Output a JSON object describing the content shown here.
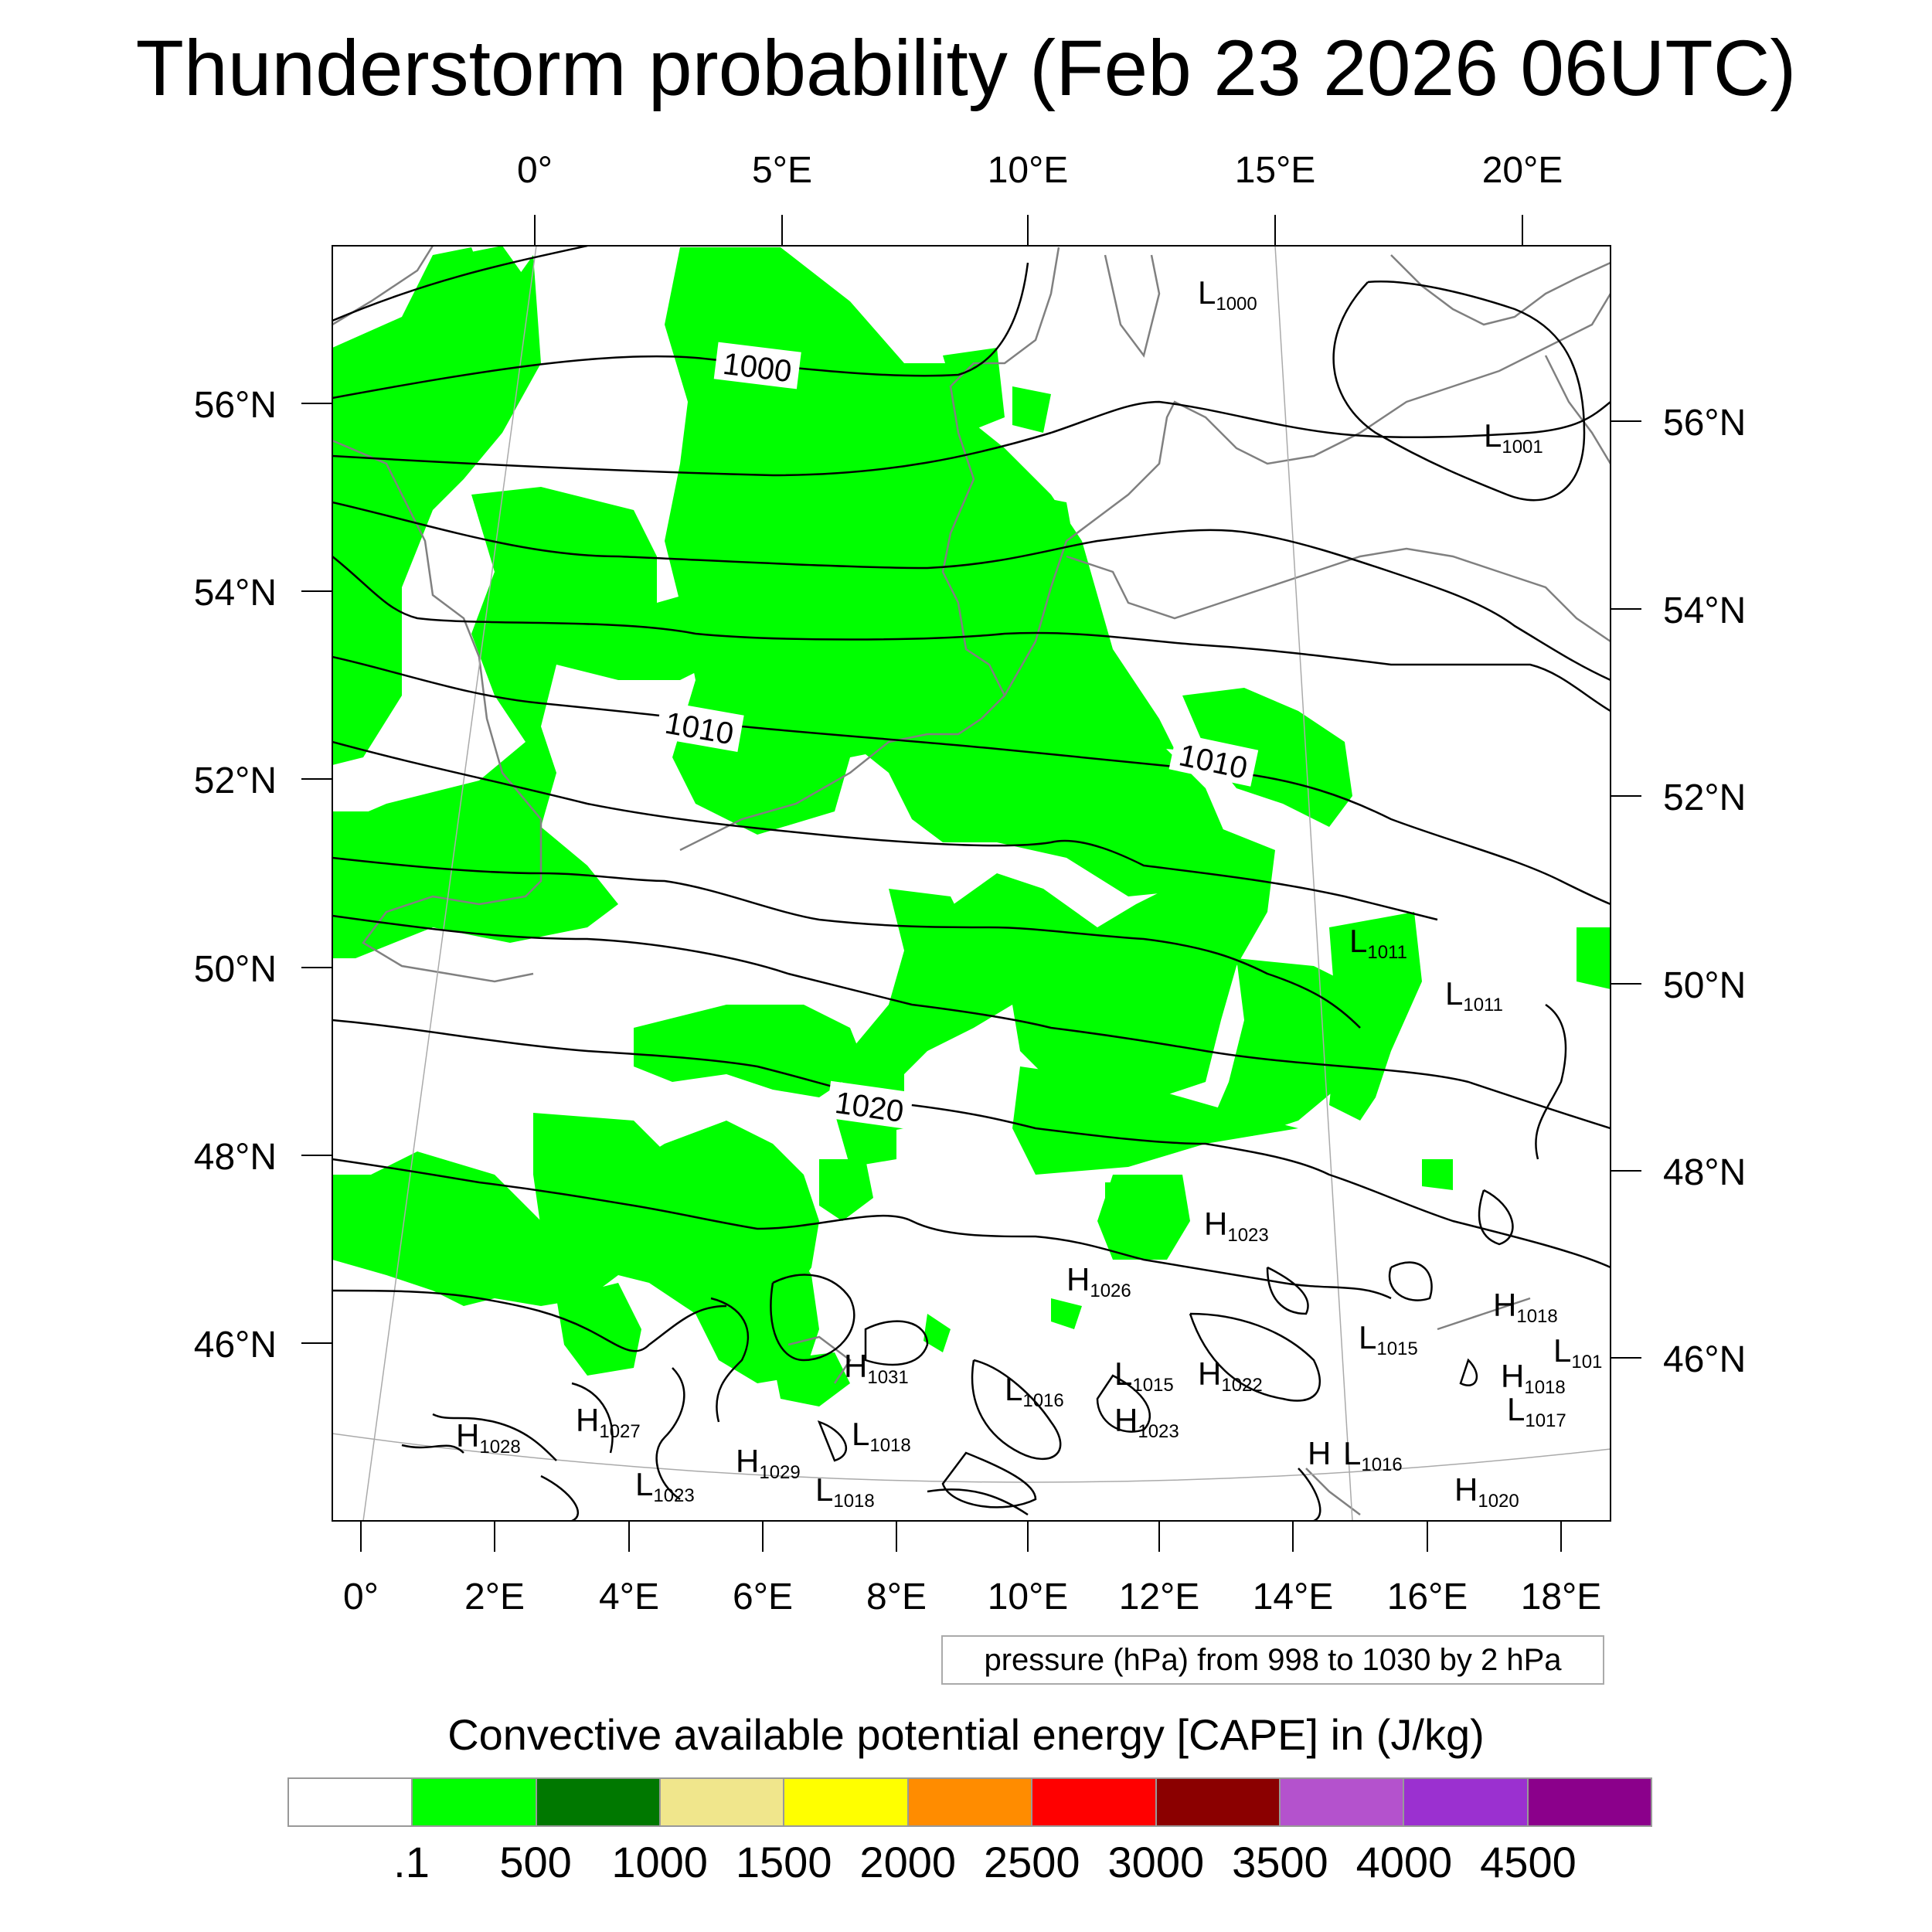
{
  "title": "Thunderstorm probability (Feb 23 2026 06UTC)",
  "top_axis_labels": [
    "0°",
    "5°E",
    "10°E",
    "15°E",
    "20°E"
  ],
  "bottom_axis_labels": [
    "0°",
    "2°E",
    "4°E",
    "6°E",
    "8°E",
    "10°E",
    "12°E",
    "14°E",
    "16°E",
    "18°E"
  ],
  "left_axis_labels": [
    "56°N",
    "54°N",
    "52°N",
    "50°N",
    "48°N",
    "46°N"
  ],
  "right_axis_labels": [
    "56°N",
    "54°N",
    "52°N",
    "50°N",
    "48°N",
    "46°N"
  ],
  "contour_labels": [
    "1000",
    "1010",
    "1010",
    "1020"
  ],
  "pressure_centers": [
    {
      "letter": "L",
      "value": "1000"
    },
    {
      "letter": "L",
      "value": "1001"
    },
    {
      "letter": "L",
      "value": "1011"
    },
    {
      "letter": "L",
      "value": "1011"
    },
    {
      "letter": "H",
      "value": "1023"
    },
    {
      "letter": "H",
      "value": "1026"
    },
    {
      "letter": "H",
      "value": "1018"
    },
    {
      "letter": "L",
      "value": "1015"
    },
    {
      "letter": "L",
      "value": "101"
    },
    {
      "letter": "H",
      "value": "1031"
    },
    {
      "letter": "L",
      "value": "1016"
    },
    {
      "letter": "L",
      "value": "1015"
    },
    {
      "letter": "H",
      "value": "1022"
    },
    {
      "letter": "H",
      "value": "1018"
    },
    {
      "letter": "L",
      "value": "1017"
    },
    {
      "letter": "H",
      "value": "1028"
    },
    {
      "letter": "H",
      "value": "1027"
    },
    {
      "letter": "L",
      "value": "1018"
    },
    {
      "letter": "H",
      "value": "1023"
    },
    {
      "letter": "H",
      "value": ""
    },
    {
      "letter": "L",
      "value": "1016"
    },
    {
      "letter": "H",
      "value": "1029"
    },
    {
      "letter": "L",
      "value": "1023"
    },
    {
      "letter": "L",
      "value": "1018"
    },
    {
      "letter": "H",
      "value": "1020"
    }
  ],
  "contour_note": "pressure (hPa) from 998 to 1030 by 2 hPa",
  "colorbar": {
    "title": "Convective available potential energy [CAPE] in (J/kg)",
    "colors": [
      "#ffffff",
      "#00ff00",
      "#007800",
      "#f0e68c",
      "#ffff00",
      "#ff8c00",
      "#ff0000",
      "#8b0000",
      "#b452cd",
      "#9b30d0",
      "#8b008b"
    ],
    "labels": [
      ".1",
      "500",
      "1000",
      "1500",
      "2000",
      "2500",
      "3000",
      "3500",
      "4000",
      "4500"
    ]
  },
  "colors": {
    "cape_fill": "#00ff00",
    "isobar": "#000000",
    "coastline": "#808080"
  }
}
